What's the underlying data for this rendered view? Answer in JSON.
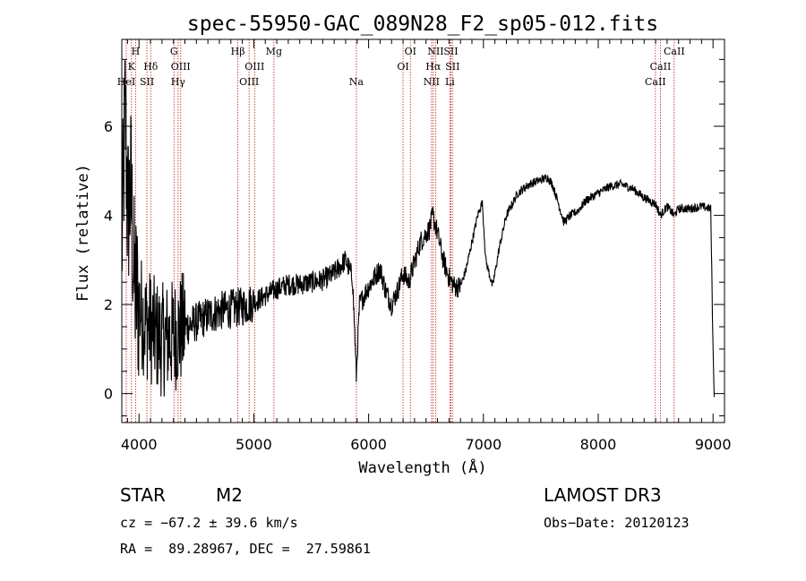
{
  "chart_data": {
    "type": "line",
    "title": "spec-55950-GAC_089N28_F2_sp05-012.fits",
    "xlabel": "Wavelength (Å)",
    "ylabel": "Flux (relative)",
    "xlim": [
      3850,
      9100
    ],
    "ylim": [
      -0.65,
      7.95
    ],
    "x_ticks": [
      4000,
      5000,
      6000,
      7000,
      8000,
      9000
    ],
    "y_ticks": [
      0,
      2,
      4,
      6
    ],
    "line_color": "#000000",
    "marker_color": "#c0392b",
    "spectral_lines": [
      {
        "label": "H",
        "wavelength": 3970,
        "row": 1
      },
      {
        "label": "K",
        "wavelength": 3934,
        "row": 2
      },
      {
        "label": "HeI",
        "wavelength": 3889,
        "row": 3
      },
      {
        "label": "SII",
        "wavelength": 4069,
        "row": 3
      },
      {
        "label": "Hδ",
        "wavelength": 4102,
        "row": 2
      },
      {
        "label": "G",
        "wavelength": 4305,
        "row": 1
      },
      {
        "label": "OIII",
        "wavelength": 4363,
        "row": 2
      },
      {
        "label": "Hγ",
        "wavelength": 4340,
        "row": 3
      },
      {
        "label": "Hβ",
        "wavelength": 4861,
        "row": 1
      },
      {
        "label": "OIII",
        "wavelength": 5007,
        "row": 2
      },
      {
        "label": "OIII",
        "wavelength": 4959,
        "row": 3
      },
      {
        "label": "Mg",
        "wavelength": 5175,
        "row": 1
      },
      {
        "label": "Na",
        "wavelength": 5893,
        "row": 3
      },
      {
        "label": "OI",
        "wavelength": 6364,
        "row": 1
      },
      {
        "label": "OI",
        "wavelength": 6300,
        "row": 2
      },
      {
        "label": "NII",
        "wavelength": 6584,
        "row": 1
      },
      {
        "label": "SII",
        "wavelength": 6717,
        "row": 1
      },
      {
        "label": "Hα",
        "wavelength": 6563,
        "row": 2
      },
      {
        "label": "SII",
        "wavelength": 6731,
        "row": 2
      },
      {
        "label": "NII",
        "wavelength": 6548,
        "row": 3
      },
      {
        "label": "Li",
        "wavelength": 6708,
        "row": 3
      },
      {
        "label": "CaII",
        "wavelength": 8662,
        "row": 1
      },
      {
        "label": "CaII",
        "wavelength": 8542,
        "row": 2
      },
      {
        "label": "CaII",
        "wavelength": 8498,
        "row": 3
      }
    ],
    "series": [
      {
        "name": "flux",
        "anchors": [
          [
            3850,
            3.2
          ],
          [
            3880,
            6.5
          ],
          [
            3900,
            4.0
          ],
          [
            3930,
            4.6
          ],
          [
            3960,
            2.4
          ],
          [
            4000,
            2.0
          ],
          [
            4050,
            1.6
          ],
          [
            4100,
            1.5
          ],
          [
            4150,
            1.3
          ],
          [
            4200,
            1.2
          ],
          [
            4300,
            1.3
          ],
          [
            4350,
            1.4
          ],
          [
            4400,
            1.5
          ],
          [
            4500,
            1.6
          ],
          [
            4600,
            1.75
          ],
          [
            4700,
            1.85
          ],
          [
            4800,
            1.9
          ],
          [
            4900,
            1.95
          ],
          [
            5000,
            2.05
          ],
          [
            5100,
            2.2
          ],
          [
            5200,
            2.35
          ],
          [
            5300,
            2.45
          ],
          [
            5400,
            2.45
          ],
          [
            5500,
            2.5
          ],
          [
            5600,
            2.55
          ],
          [
            5700,
            2.7
          ],
          [
            5800,
            3.0
          ],
          [
            5860,
            2.6
          ],
          [
            5893,
            0.4
          ],
          [
            5920,
            2.0
          ],
          [
            6000,
            2.4
          ],
          [
            6100,
            2.8
          ],
          [
            6150,
            2.3
          ],
          [
            6200,
            2.0
          ],
          [
            6250,
            2.3
          ],
          [
            6300,
            2.7
          ],
          [
            6350,
            2.5
          ],
          [
            6450,
            3.4
          ],
          [
            6530,
            3.7
          ],
          [
            6560,
            4.0
          ],
          [
            6600,
            3.6
          ],
          [
            6650,
            3.0
          ],
          [
            6700,
            2.6
          ],
          [
            6750,
            2.4
          ],
          [
            6800,
            2.4
          ],
          [
            6850,
            2.8
          ],
          [
            6900,
            3.4
          ],
          [
            6950,
            4.0
          ],
          [
            6990,
            4.3
          ],
          [
            7020,
            3.0
          ],
          [
            7080,
            2.4
          ],
          [
            7140,
            3.3
          ],
          [
            7200,
            4.0
          ],
          [
            7300,
            4.5
          ],
          [
            7400,
            4.7
          ],
          [
            7500,
            4.8
          ],
          [
            7560,
            4.85
          ],
          [
            7600,
            4.7
          ],
          [
            7650,
            4.3
          ],
          [
            7700,
            3.85
          ],
          [
            7760,
            4.0
          ],
          [
            7820,
            4.1
          ],
          [
            7900,
            4.35
          ],
          [
            8000,
            4.5
          ],
          [
            8100,
            4.65
          ],
          [
            8200,
            4.7
          ],
          [
            8300,
            4.6
          ],
          [
            8400,
            4.4
          ],
          [
            8500,
            4.25
          ],
          [
            8542,
            4.0
          ],
          [
            8600,
            4.2
          ],
          [
            8662,
            4.0
          ],
          [
            8700,
            4.15
          ],
          [
            8800,
            4.15
          ],
          [
            8900,
            4.2
          ],
          [
            8980,
            4.15
          ],
          [
            9000,
            1.0
          ],
          [
            9010,
            0.0
          ]
        ]
      }
    ]
  },
  "info": {
    "object_class": "STAR",
    "subclass": "M2",
    "survey": "LAMOST DR3",
    "redshift": "cz = −67.2 ± 39.6 km/s",
    "obs_date": "Obs−Date: 20120123",
    "coords": "RA =  89.28967, DEC =  27.59861"
  }
}
